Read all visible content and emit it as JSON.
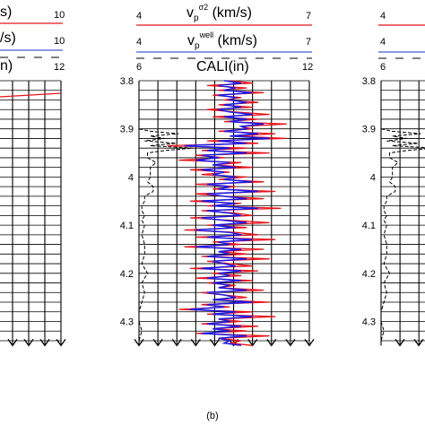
{
  "caption": "(b)",
  "colors": {
    "vp_sigma2": "#e8141b",
    "vp_well": "#1a1ae6",
    "cali": "#000000",
    "header_rule_red": "#e8141b",
    "header_rule_blue": "#4a5bd4"
  },
  "chart_data": [
    {
      "panel": "left (cropped)",
      "type": "line",
      "header": [
        {
          "name_end": "s)",
          "right": "10"
        },
        {
          "name_end": "/s)",
          "right": "10"
        },
        {
          "name_end": "n)",
          "right": "12"
        }
      ]
    },
    {
      "panel": "(b)",
      "type": "line",
      "orientation": "depth-vertical",
      "y_axis": {
        "range": [
          3.8,
          4.35
        ],
        "inverted": true,
        "ticks": [
          "3.8",
          "3.9",
          "4",
          "4.1",
          "4.2",
          "4.3"
        ]
      },
      "header": [
        {
          "label": "v",
          "sub": "p",
          "sup": "σ2",
          "unit": " (km/s)",
          "left": "4",
          "right": "7"
        },
        {
          "label": "v",
          "sub": "p",
          "sup": "well",
          "unit": " (km/s)",
          "left": "4",
          "right": "7"
        },
        {
          "label": "CALI(in)",
          "left": "6",
          "right": "12"
        }
      ],
      "x_ranges": {
        "vp": [
          4,
          7
        ],
        "cali": [
          6,
          12
        ]
      },
      "grid": true,
      "series": [
        {
          "name": "vp^σ2",
          "axis": "vp",
          "depth": [
            3.8,
            3.805,
            3.81,
            3.815,
            3.82,
            3.825,
            3.83,
            3.835,
            3.84,
            3.845,
            3.85,
            3.855,
            3.86,
            3.865,
            3.87,
            3.875,
            3.88,
            3.885,
            3.89,
            3.895,
            3.9,
            3.905,
            3.91,
            3.915,
            3.92,
            3.925,
            3.93,
            3.935,
            3.94,
            3.945,
            3.95,
            3.955,
            3.96,
            3.965,
            3.97,
            3.975,
            3.98,
            3.985,
            3.99,
            3.995,
            4.0,
            4.005,
            4.01,
            4.015,
            4.02,
            4.025,
            4.03,
            4.035,
            4.04,
            4.045,
            4.05,
            4.055,
            4.06,
            4.065,
            4.07,
            4.075,
            4.08,
            4.085,
            4.09,
            4.095,
            4.1,
            4.105,
            4.11,
            4.115,
            4.12,
            4.125,
            4.13,
            4.135,
            4.14,
            4.145,
            4.15,
            4.155,
            4.16,
            4.165,
            4.17,
            4.175,
            4.18,
            4.185,
            4.19,
            4.195,
            4.2,
            4.205,
            4.21,
            4.215,
            4.22,
            4.225,
            4.23,
            4.235,
            4.24,
            4.245,
            4.25,
            4.255,
            4.26,
            4.265,
            4.27,
            4.275,
            4.28,
            4.285,
            4.29,
            4.295,
            4.3,
            4.305,
            4.31,
            4.315,
            4.32,
            4.325,
            4.33,
            4.335,
            4.34,
            4.345,
            4.35
          ],
          "values": [
            5.6,
            6.0,
            5.2,
            5.9,
            5.4,
            6.2,
            5.3,
            5.8,
            5.5,
            6.1,
            5.4,
            6.0,
            5.2,
            5.7,
            6.3,
            5.3,
            6.1,
            5.5,
            6.6,
            5.8,
            6.0,
            5.4,
            6.4,
            5.7,
            6.6,
            5.2,
            6.1,
            4.5,
            5.9,
            5.1,
            6.3,
            5.0,
            5.5,
            4.7,
            5.8,
            5.3,
            6.0,
            4.9,
            5.6,
            5.1,
            5.9,
            5.4,
            6.2,
            5.0,
            5.7,
            5.3,
            6.4,
            5.0,
            5.5,
            6.2,
            4.9,
            5.8,
            5.2,
            6.5,
            5.1,
            5.7,
            6.0,
            4.9,
            5.6,
            6.3,
            5.2,
            5.9,
            4.8,
            5.7,
            6.1,
            5.0,
            6.4,
            5.3,
            5.8,
            4.8,
            6.2,
            5.4,
            5.9,
            5.1,
            6.3,
            5.2,
            5.6,
            6.0,
            4.9,
            6.1,
            5.3,
            5.8,
            5.0,
            6.0,
            5.2,
            5.7,
            5.4,
            6.2,
            5.1,
            5.5,
            5.9,
            5.3,
            6.3,
            5.1,
            5.6,
            4.7,
            6.0,
            5.2,
            6.4,
            5.4,
            5.8,
            5.1,
            6.1,
            5.3,
            5.9,
            5.0,
            6.3,
            5.4,
            5.8,
            5.6,
            6.0
          ]
        },
        {
          "name": "vp^well",
          "axis": "vp",
          "depth": [
            3.8,
            3.805,
            3.81,
            3.815,
            3.82,
            3.825,
            3.83,
            3.835,
            3.84,
            3.845,
            3.85,
            3.855,
            3.86,
            3.865,
            3.87,
            3.875,
            3.88,
            3.885,
            3.89,
            3.895,
            3.9,
            3.905,
            3.91,
            3.915,
            3.92,
            3.925,
            3.93,
            3.935,
            3.94,
            3.945,
            3.95,
            3.955,
            3.96,
            3.965,
            3.97,
            3.975,
            3.98,
            3.985,
            3.99,
            3.995,
            4.0,
            4.005,
            4.01,
            4.015,
            4.02,
            4.025,
            4.03,
            4.035,
            4.04,
            4.045,
            4.05,
            4.055,
            4.06,
            4.065,
            4.07,
            4.075,
            4.08,
            4.085,
            4.09,
            4.095,
            4.1,
            4.105,
            4.11,
            4.115,
            4.12,
            4.125,
            4.13,
            4.135,
            4.14,
            4.145,
            4.15,
            4.155,
            4.16,
            4.165,
            4.17,
            4.175,
            4.18,
            4.185,
            4.19,
            4.195,
            4.2,
            4.205,
            4.21,
            4.215,
            4.22,
            4.225,
            4.23,
            4.235,
            4.24,
            4.245,
            4.25,
            4.255,
            4.26,
            4.265,
            4.27,
            4.275,
            4.28,
            4.285,
            4.29,
            4.295,
            4.3,
            4.305,
            4.31,
            4.315,
            4.32,
            4.325,
            4.33,
            4.335,
            4.34,
            4.345,
            4.35
          ],
          "values": [
            5.5,
            5.8,
            5.4,
            5.7,
            5.5,
            6.0,
            5.4,
            5.7,
            5.6,
            5.9,
            5.5,
            5.8,
            5.4,
            5.6,
            6.0,
            5.5,
            5.9,
            5.6,
            6.2,
            5.8,
            5.9,
            5.5,
            6.1,
            5.6,
            6.3,
            5.4,
            5.9,
            4.8,
            5.6,
            5.2,
            5.9,
            5.1,
            5.4,
            5.0,
            5.6,
            5.3,
            5.7,
            5.1,
            5.5,
            5.3,
            5.7,
            5.5,
            6.0,
            5.2,
            5.6,
            5.4,
            6.1,
            5.2,
            5.5,
            5.9,
            5.1,
            5.7,
            5.3,
            6.1,
            5.2,
            5.6,
            5.8,
            5.1,
            5.5,
            5.9,
            5.3,
            5.7,
            5.0,
            5.6,
            5.8,
            5.2,
            6.0,
            5.4,
            5.6,
            5.0,
            5.8,
            5.4,
            5.6,
            5.2,
            5.9,
            5.3,
            5.5,
            5.7,
            5.1,
            5.8,
            5.4,
            5.6,
            5.2,
            5.8,
            5.3,
            5.6,
            5.4,
            5.9,
            5.2,
            5.5,
            5.7,
            5.3,
            6.0,
            5.2,
            5.5,
            4.9,
            5.7,
            5.3,
            6.0,
            5.4,
            5.6,
            5.2,
            5.8,
            5.3,
            5.6,
            5.1,
            5.9,
            5.4,
            5.6,
            5.5,
            5.8
          ]
        },
        {
          "name": "CALI",
          "axis": "cali",
          "depth": [
            3.8,
            3.82,
            3.84,
            3.86,
            3.88,
            3.9,
            3.905,
            3.91,
            3.915,
            3.92,
            3.925,
            3.93,
            3.935,
            3.94,
            3.945,
            3.95,
            3.96,
            3.97,
            3.98,
            3.99,
            4.0,
            4.01,
            4.02,
            4.03,
            4.04,
            4.05,
            4.06,
            4.07,
            4.08,
            4.09,
            4.1,
            4.12,
            4.14,
            4.16,
            4.18,
            4.2,
            4.22,
            4.24,
            4.26,
            4.28,
            4.3,
            4.32,
            4.34,
            4.35
          ],
          "values": [
            6.0,
            6.0,
            6.0,
            6.0,
            6.0,
            6.0,
            6.4,
            7.4,
            6.4,
            6.9,
            6.2,
            7.3,
            6.4,
            7.9,
            6.9,
            6.3,
            6.3,
            6.6,
            6.4,
            6.4,
            6.4,
            6.3,
            6.5,
            6.5,
            6.2,
            6.2,
            6.1,
            6.1,
            6.2,
            6.1,
            6.2,
            6.1,
            6.2,
            6.2,
            6.1,
            6.3,
            6.1,
            6.2,
            6.1,
            6.0,
            6.0,
            6.1,
            6.0,
            6.0
          ]
        }
      ]
    },
    {
      "panel": "right (cropped)",
      "type": "line",
      "header": [
        {
          "left": "4"
        },
        {
          "left": "4"
        },
        {
          "left": "6"
        }
      ],
      "y_axis": {
        "ticks": [
          "3.8",
          "3.9",
          "4",
          "4.1",
          "4.2",
          "4.3"
        ]
      }
    }
  ]
}
